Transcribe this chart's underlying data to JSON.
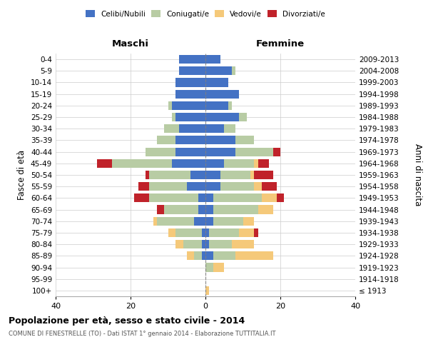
{
  "age_groups": [
    "100+",
    "95-99",
    "90-94",
    "85-89",
    "80-84",
    "75-79",
    "70-74",
    "65-69",
    "60-64",
    "55-59",
    "50-54",
    "45-49",
    "40-44",
    "35-39",
    "30-34",
    "25-29",
    "20-24",
    "15-19",
    "10-14",
    "5-9",
    "0-4"
  ],
  "birth_years": [
    "≤ 1913",
    "1914-1918",
    "1919-1923",
    "1924-1928",
    "1929-1933",
    "1934-1938",
    "1939-1943",
    "1944-1948",
    "1949-1953",
    "1954-1958",
    "1959-1963",
    "1964-1968",
    "1969-1973",
    "1974-1978",
    "1979-1983",
    "1984-1988",
    "1989-1993",
    "1994-1998",
    "1999-2003",
    "2004-2008",
    "2009-2013"
  ],
  "colors": {
    "celibi": "#4472c4",
    "coniugati": "#b8cca4",
    "vedovi": "#f5c97a",
    "divorziati": "#c0222a"
  },
  "maschi": {
    "celibi": [
      0,
      0,
      0,
      1,
      1,
      1,
      3,
      2,
      2,
      5,
      4,
      9,
      8,
      8,
      7,
      8,
      9,
      8,
      8,
      7,
      7
    ],
    "coniugati": [
      0,
      0,
      0,
      2,
      5,
      7,
      10,
      9,
      13,
      10,
      11,
      16,
      8,
      5,
      4,
      1,
      1,
      0,
      0,
      0,
      0
    ],
    "vedovi": [
      0,
      0,
      0,
      2,
      2,
      2,
      1,
      0,
      0,
      0,
      0,
      0,
      0,
      0,
      0,
      0,
      0,
      0,
      0,
      0,
      0
    ],
    "divorziati": [
      0,
      0,
      0,
      0,
      0,
      0,
      0,
      2,
      4,
      3,
      1,
      4,
      0,
      0,
      0,
      0,
      0,
      0,
      0,
      0,
      0
    ]
  },
  "femmine": {
    "celibi": [
      0,
      0,
      0,
      2,
      1,
      1,
      2,
      2,
      2,
      4,
      4,
      5,
      8,
      8,
      5,
      9,
      6,
      9,
      6,
      7,
      4
    ],
    "coniugati": [
      0,
      0,
      2,
      6,
      6,
      8,
      8,
      12,
      13,
      9,
      8,
      8,
      10,
      5,
      3,
      2,
      1,
      0,
      0,
      1,
      0
    ],
    "vedovi": [
      1,
      0,
      3,
      10,
      6,
      4,
      3,
      4,
      4,
      2,
      1,
      1,
      0,
      0,
      0,
      0,
      0,
      0,
      0,
      0,
      0
    ],
    "divorziati": [
      0,
      0,
      0,
      0,
      0,
      1,
      0,
      0,
      2,
      4,
      5,
      3,
      2,
      0,
      0,
      0,
      0,
      0,
      0,
      0,
      0
    ]
  },
  "xlim": 40,
  "title": "Popolazione per età, sesso e stato civile - 2014",
  "subtitle": "COMUNE DI FENESTRELLE (TO) - Dati ISTAT 1° gennaio 2014 - Elaborazione TUTTITALIA.IT",
  "ylabel_left": "Fasce di età",
  "ylabel_right": "Anni di nascita",
  "legend_labels": [
    "Celibi/Nubili",
    "Coniugati/e",
    "Vedovi/e",
    "Divorziati/e"
  ],
  "maschi_label": "Maschi",
  "femmine_label": "Femmine"
}
